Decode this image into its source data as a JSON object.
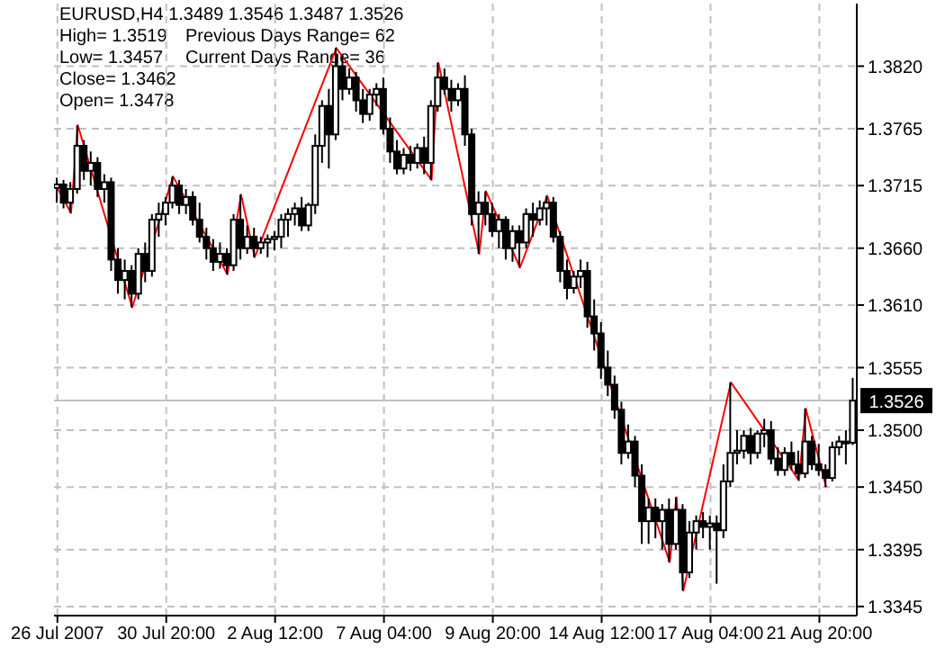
{
  "chart_data": {
    "type": "candlestick",
    "title": "EURUSD,H4  1.3489 1.3546 1.3487 1.3526",
    "annotations": [
      "High= 1.3519",
      "Low= 1.3457",
      "Close= 1.3462",
      "Open= 1.3478",
      "Previous Days Range= 62",
      "Current Days Range= 36"
    ],
    "categories": [
      "26 Jul 2007",
      null,
      null,
      null,
      null,
      null,
      null,
      null,
      null,
      null,
      null,
      null,
      null,
      null,
      null,
      null,
      "30 Jul 20:00",
      null,
      null,
      null,
      null,
      null,
      null,
      null,
      null,
      null,
      null,
      null,
      null,
      null,
      null,
      null,
      "2 Aug 12:00",
      null,
      null,
      null,
      null,
      null,
      null,
      null,
      null,
      null,
      null,
      null,
      null,
      null,
      null,
      null,
      "7 Aug 04:00",
      null,
      null,
      null,
      null,
      null,
      null,
      null,
      null,
      null,
      null,
      null,
      null,
      null,
      null,
      null,
      "9 Aug 20:00",
      null,
      null,
      null,
      null,
      null,
      null,
      null,
      null,
      null,
      null,
      null,
      null,
      null,
      null,
      null,
      "14 Aug 12:00",
      null,
      null,
      null,
      null,
      null,
      null,
      null,
      null,
      null,
      null,
      null,
      null,
      null,
      null,
      null,
      "17 Aug 04:00",
      null,
      null,
      null,
      null,
      null,
      null,
      null,
      null,
      null,
      null,
      null,
      null,
      null,
      null,
      null,
      "21 Aug 20:00",
      null,
      null,
      null,
      null,
      null
    ],
    "ohlc": [
      [
        1.3713,
        1.3722,
        1.37,
        1.3716
      ],
      [
        1.3716,
        1.372,
        1.3695,
        1.37
      ],
      [
        1.37,
        1.3718,
        1.3691,
        1.3712
      ],
      [
        1.3712,
        1.3768,
        1.3708,
        1.375
      ],
      [
        1.375,
        1.3755,
        1.372,
        1.3728
      ],
      [
        1.3728,
        1.3745,
        1.3715,
        1.3735
      ],
      [
        1.3735,
        1.374,
        1.3705,
        1.3712
      ],
      [
        1.3712,
        1.3725,
        1.37,
        1.3718
      ],
      [
        1.3718,
        1.3722,
        1.364,
        1.365
      ],
      [
        1.365,
        1.366,
        1.362,
        1.3632
      ],
      [
        1.3632,
        1.365,
        1.3615,
        1.364
      ],
      [
        1.364,
        1.3645,
        1.3608,
        1.362
      ],
      [
        1.362,
        1.366,
        1.3615,
        1.3655
      ],
      [
        1.3655,
        1.3665,
        1.363,
        1.364
      ],
      [
        1.364,
        1.369,
        1.3635,
        1.3685
      ],
      [
        1.3685,
        1.37,
        1.367,
        1.369
      ],
      [
        1.369,
        1.3705,
        1.368,
        1.37
      ],
      [
        1.37,
        1.3723,
        1.3695,
        1.3715
      ],
      [
        1.3715,
        1.372,
        1.369,
        1.3698
      ],
      [
        1.3698,
        1.3712,
        1.369,
        1.3705
      ],
      [
        1.3705,
        1.371,
        1.368,
        1.3685
      ],
      [
        1.3685,
        1.37,
        1.3665,
        1.367
      ],
      [
        1.367,
        1.3678,
        1.365,
        1.366
      ],
      [
        1.366,
        1.3668,
        1.364,
        1.3648
      ],
      [
        1.3648,
        1.3665,
        1.3642,
        1.3655
      ],
      [
        1.3655,
        1.366,
        1.3637,
        1.3645
      ],
      [
        1.3645,
        1.369,
        1.364,
        1.3685
      ],
      [
        1.3685,
        1.3707,
        1.365,
        1.366
      ],
      [
        1.366,
        1.368,
        1.3655,
        1.367
      ],
      [
        1.367,
        1.3678,
        1.3652,
        1.366
      ],
      [
        1.366,
        1.367,
        1.3655,
        1.3665
      ],
      [
        1.3665,
        1.3672,
        1.3652,
        1.3668
      ],
      [
        1.3668,
        1.3675,
        1.3658,
        1.367
      ],
      [
        1.367,
        1.369,
        1.366,
        1.3685
      ],
      [
        1.3685,
        1.3695,
        1.367,
        1.369
      ],
      [
        1.369,
        1.37,
        1.368,
        1.3695
      ],
      [
        1.3695,
        1.3705,
        1.3675,
        1.368
      ],
      [
        1.368,
        1.37,
        1.3675,
        1.3698
      ],
      [
        1.3698,
        1.376,
        1.369,
        1.375
      ],
      [
        1.375,
        1.379,
        1.3735,
        1.3785
      ],
      [
        1.3785,
        1.38,
        1.373,
        1.376
      ],
      [
        1.376,
        1.3836,
        1.3755,
        1.382
      ],
      [
        1.382,
        1.383,
        1.379,
        1.38
      ],
      [
        1.38,
        1.3818,
        1.3795,
        1.381
      ],
      [
        1.381,
        1.3815,
        1.378,
        1.379
      ],
      [
        1.379,
        1.38,
        1.377,
        1.3778
      ],
      [
        1.3778,
        1.38,
        1.3772,
        1.3795
      ],
      [
        1.3795,
        1.3805,
        1.3785,
        1.38
      ],
      [
        1.38,
        1.381,
        1.376,
        1.3765
      ],
      [
        1.3765,
        1.3775,
        1.3735,
        1.3745
      ],
      [
        1.3745,
        1.3755,
        1.3725,
        1.373
      ],
      [
        1.373,
        1.3748,
        1.3725,
        1.3742
      ],
      [
        1.3742,
        1.375,
        1.3728,
        1.3735
      ],
      [
        1.3735,
        1.3752,
        1.373,
        1.3748
      ],
      [
        1.3748,
        1.3758,
        1.3725,
        1.3735
      ],
      [
        1.3735,
        1.379,
        1.372,
        1.3785
      ],
      [
        1.3785,
        1.3823,
        1.378,
        1.381
      ],
      [
        1.381,
        1.3818,
        1.3795,
        1.38
      ],
      [
        1.38,
        1.3808,
        1.378,
        1.379
      ],
      [
        1.379,
        1.3805,
        1.3785,
        1.38
      ],
      [
        1.38,
        1.3812,
        1.375,
        1.376
      ],
      [
        1.376,
        1.3765,
        1.368,
        1.369
      ],
      [
        1.369,
        1.371,
        1.3655,
        1.37
      ],
      [
        1.37,
        1.371,
        1.368,
        1.369
      ],
      [
        1.369,
        1.37,
        1.367,
        1.3675
      ],
      [
        1.3675,
        1.369,
        1.366,
        1.3685
      ],
      [
        1.3685,
        1.3688,
        1.365,
        1.366
      ],
      [
        1.366,
        1.368,
        1.3648,
        1.3675
      ],
      [
        1.3675,
        1.368,
        1.3643,
        1.3665
      ],
      [
        1.3665,
        1.3695,
        1.366,
        1.369
      ],
      [
        1.369,
        1.37,
        1.367,
        1.3685
      ],
      [
        1.3685,
        1.3702,
        1.368,
        1.3695
      ],
      [
        1.3695,
        1.3706,
        1.368,
        1.37
      ],
      [
        1.37,
        1.3705,
        1.3665,
        1.367
      ],
      [
        1.367,
        1.3675,
        1.363,
        1.364
      ],
      [
        1.364,
        1.365,
        1.3615,
        1.3625
      ],
      [
        1.3625,
        1.364,
        1.362,
        1.3635
      ],
      [
        1.3635,
        1.365,
        1.3625,
        1.364
      ],
      [
        1.364,
        1.3648,
        1.359,
        1.36
      ],
      [
        1.36,
        1.3615,
        1.357,
        1.3585
      ],
      [
        1.3585,
        1.3595,
        1.3545,
        1.3555
      ],
      [
        1.3555,
        1.357,
        1.353,
        1.354
      ],
      [
        1.354,
        1.3548,
        1.351,
        1.3518
      ],
      [
        1.3518,
        1.3525,
        1.347,
        1.348
      ],
      [
        1.348,
        1.3505,
        1.3475,
        1.349
      ],
      [
        1.349,
        1.3495,
        1.345,
        1.346
      ],
      [
        1.346,
        1.347,
        1.34,
        1.342
      ],
      [
        1.342,
        1.344,
        1.34,
        1.3432
      ],
      [
        1.3432,
        1.344,
        1.3405,
        1.342
      ],
      [
        1.342,
        1.3435,
        1.3395,
        1.343
      ],
      [
        1.343,
        1.344,
        1.3384,
        1.34
      ],
      [
        1.34,
        1.3441,
        1.3395,
        1.343
      ],
      [
        1.343,
        1.3435,
        1.3359,
        1.3375
      ],
      [
        1.3375,
        1.342,
        1.337,
        1.341
      ],
      [
        1.341,
        1.3425,
        1.3395,
        1.342
      ],
      [
        1.342,
        1.3428,
        1.3405,
        1.3415
      ],
      [
        1.3415,
        1.3425,
        1.3395,
        1.3418
      ],
      [
        1.3418,
        1.3425,
        1.3365,
        1.3412
      ],
      [
        1.3412,
        1.347,
        1.3405,
        1.3455
      ],
      [
        1.3455,
        1.3542,
        1.345,
        1.348
      ],
      [
        1.348,
        1.35,
        1.347,
        1.3482
      ],
      [
        1.3482,
        1.35,
        1.3475,
        1.3495
      ],
      [
        1.3495,
        1.3502,
        1.347,
        1.348
      ],
      [
        1.348,
        1.35,
        1.3475,
        1.3497
      ],
      [
        1.3497,
        1.351,
        1.3485,
        1.35
      ],
      [
        1.35,
        1.3508,
        1.347,
        1.3475
      ],
      [
        1.3475,
        1.3485,
        1.346,
        1.3465
      ],
      [
        1.3465,
        1.3485,
        1.346,
        1.348
      ],
      [
        1.348,
        1.349,
        1.3465,
        1.347
      ],
      [
        1.347,
        1.3482,
        1.3456,
        1.3462
      ],
      [
        1.3462,
        1.3519,
        1.3458,
        1.349
      ],
      [
        1.349,
        1.3495,
        1.3465,
        1.347
      ],
      [
        1.347,
        1.3488,
        1.346,
        1.3465
      ],
      [
        1.3465,
        1.347,
        1.345,
        1.3458
      ],
      [
        1.3458,
        1.349,
        1.3455,
        1.3485
      ],
      [
        1.3485,
        1.3495,
        1.3478,
        1.349
      ],
      [
        1.349,
        1.35,
        1.347,
        1.3489
      ],
      [
        1.3489,
        1.3546,
        1.3487,
        1.3526
      ]
    ],
    "series": [
      {
        "type": "line",
        "color": "#ff0000",
        "values": [
          1.3713,
          null,
          1.3691,
          1.3768,
          null,
          null,
          null,
          null,
          null,
          null,
          null,
          1.3608,
          null,
          null,
          null,
          null,
          null,
          1.3723,
          null,
          null,
          null,
          null,
          null,
          null,
          null,
          1.3637,
          null,
          1.3707,
          null,
          1.3652,
          null,
          null,
          null,
          null,
          null,
          null,
          null,
          null,
          null,
          null,
          null,
          1.3836,
          null,
          null,
          null,
          null,
          null,
          null,
          null,
          null,
          null,
          null,
          null,
          null,
          null,
          1.372,
          1.3823,
          null,
          null,
          null,
          null,
          null,
          1.3655,
          1.371,
          null,
          null,
          null,
          null,
          1.3643,
          null,
          null,
          null,
          1.3706,
          null,
          null,
          null,
          null,
          null,
          null,
          null,
          null,
          null,
          null,
          null,
          null,
          null,
          null,
          null,
          null,
          null,
          1.3384,
          1.3441,
          1.3359,
          null,
          null,
          null,
          null,
          null,
          null,
          1.3542,
          null,
          null,
          null,
          null,
          null,
          null,
          null,
          null,
          null,
          1.3456,
          1.3519,
          null,
          null,
          1.345,
          null,
          null,
          null,
          null
        ]
      }
    ],
    "ylim": [
      1.3337,
      1.3875
    ],
    "yticks": [
      {
        "value": 1.382,
        "label": "1.3820"
      },
      1.3765,
      1.3715,
      {
        "value": 1.366,
        "label": "1.3660"
      },
      {
        "value": 1.361,
        "label": "1.3610"
      },
      1.3555,
      {
        "value": 1.35,
        "label": "1.3500"
      },
      {
        "value": 1.345,
        "label": "1.3450"
      },
      1.3395,
      1.3345
    ],
    "ref_lines": [
      {
        "axis": "y",
        "value": 1.3526,
        "label": "1.3526",
        "color": "#c0c0c0"
      }
    ],
    "grid": true
  }
}
